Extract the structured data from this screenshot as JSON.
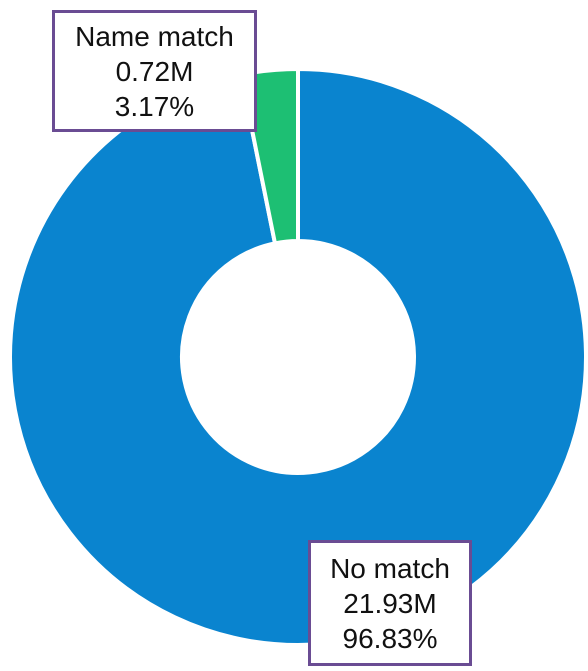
{
  "chart_data": {
    "type": "pie",
    "donut": true,
    "title": "",
    "slices": [
      {
        "label": "No match",
        "value": 21.93,
        "value_text": "21.93M",
        "percent": 96.83,
        "percent_text": "96.83%",
        "color": "#0a84cf"
      },
      {
        "label": "Name match",
        "value": 0.72,
        "value_text": "0.72M",
        "percent": 3.17,
        "percent_text": "3.17%",
        "color": "#1dbf73"
      }
    ],
    "legend": "none",
    "callout_border_color": "#6a4c93"
  }
}
